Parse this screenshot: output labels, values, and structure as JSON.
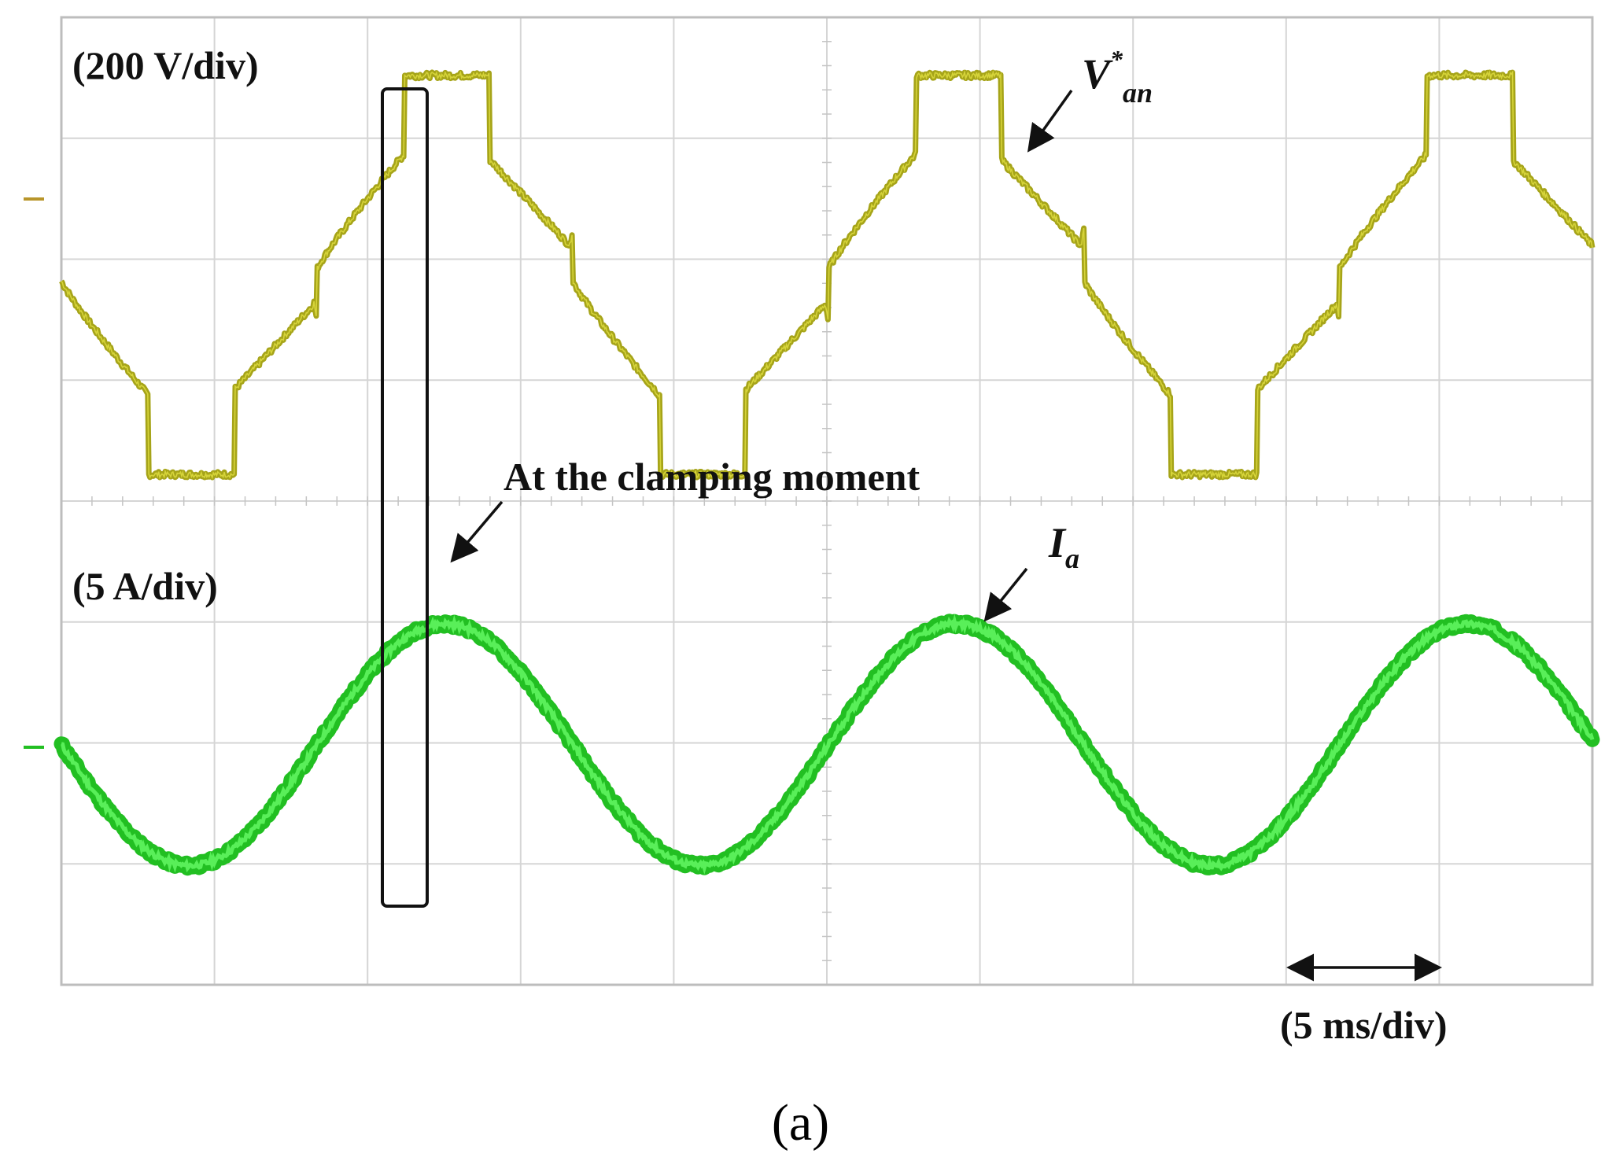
{
  "chart_data": {
    "type": "line",
    "x_unit_per_div": "5 ms/div",
    "x_divisions": 10,
    "x_range_ms": [
      0,
      50
    ],
    "grid": true,
    "channels": [
      {
        "name": "V*an",
        "scale": "200 V/div",
        "color": "#a6a419",
        "vertical_divisions": 8,
        "description": "clamped phase reference voltage, period 16.7 ms",
        "x_ms": [
          0,
          3,
          3.0,
          5.7,
          5.7,
          8.4,
          8.4,
          11.1,
          11.1,
          13.8,
          13.8,
          16.7
        ],
        "y_div": [
          0.0,
          -0.95,
          -1.65,
          -1.65,
          -0.95,
          -0.25,
          -0.8,
          0.0,
          0.95,
          1.65,
          1.65,
          0.0
        ]
      },
      {
        "name": "Ia",
        "scale": "5 A/div",
        "color": "#22bf22",
        "vertical_divisions": 8,
        "description": "phase current, near-sinusoidal, period 16.7 ms",
        "amplitude_div": 1.0,
        "period_ms": 16.7,
        "x_ms": [
          0,
          5,
          11.7,
          16.7,
          21.7,
          28.4,
          33.4,
          38.4,
          45.1,
          50
        ],
        "y_div": [
          0.05,
          -1.0,
          1.0,
          0.05,
          -1.0,
          1.0,
          0.05,
          -1.0,
          1.0,
          0.0
        ]
      }
    ]
  },
  "labels": {
    "voltage_scale": "(200 V/div)",
    "current_scale": "(5 A/div)",
    "voltage_trace_name_main": "V",
    "voltage_trace_name_sup": "*",
    "voltage_trace_name_sub": "an",
    "current_trace_name_main": "I",
    "current_trace_name_sub": "a",
    "annotation": "At the clamping moment",
    "time_scale": "(5 ms/div)",
    "caption": "(a)"
  }
}
